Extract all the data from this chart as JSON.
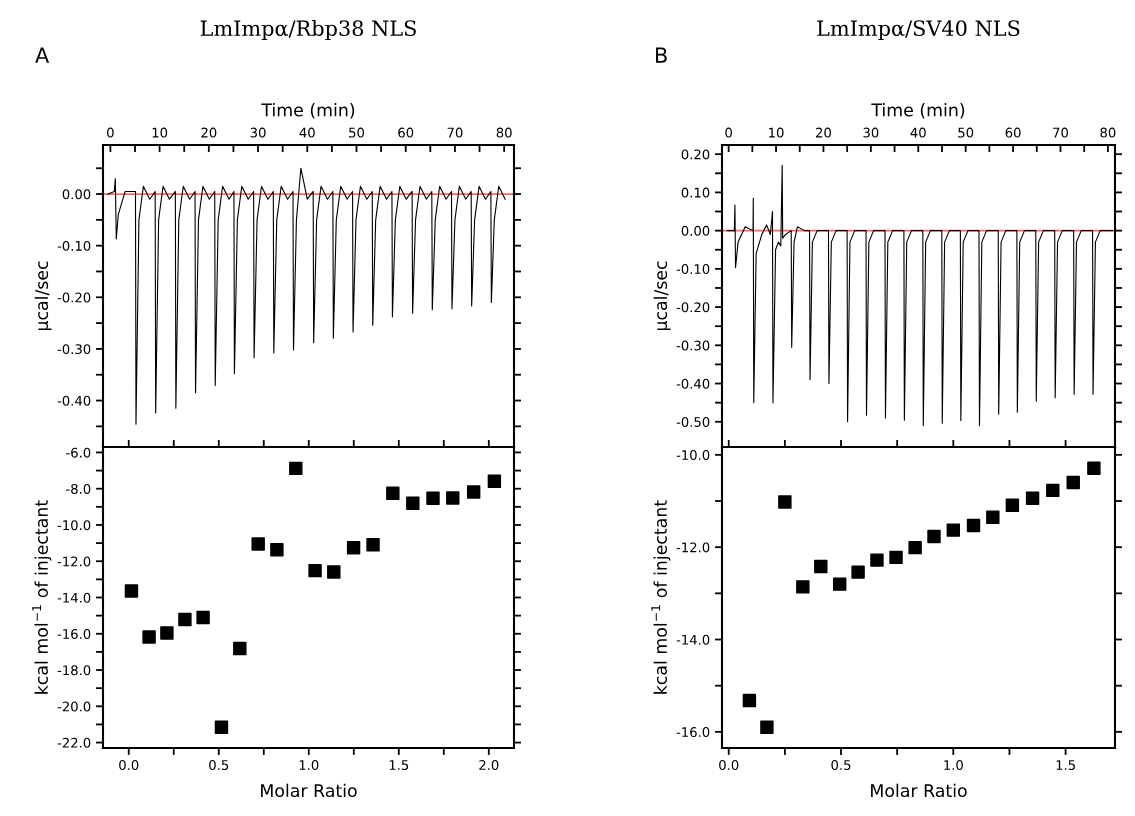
{
  "chart_data": [
    {
      "type": "line",
      "title": "LmImpα/Rbp38 NLS",
      "annotations": [
        "A"
      ],
      "xlabel": "Time (min)",
      "ylabel": "µcal/sec",
      "xlim": [
        -1.5,
        82
      ],
      "ylim": [
        -0.49,
        0.095
      ],
      "xticks": [
        0,
        {
          "value": 5,
          "label": null
        },
        10,
        {
          "value": 15,
          "label": null
        },
        20,
        {
          "value": 25,
          "label": null
        },
        30,
        {
          "value": 35,
          "label": null
        },
        40,
        {
          "value": 45,
          "label": null
        },
        50,
        {
          "value": 55,
          "label": null
        },
        60,
        {
          "value": 65,
          "label": null
        },
        70,
        {
          "value": 75,
          "label": null
        },
        80
      ],
      "yticks": [
        {
          "value": 0.05,
          "label": null
        },
        {
          "value": 0,
          "label": "0.00"
        },
        {
          "value": -0.05,
          "label": null
        },
        {
          "value": -0.1,
          "label": "-0.10"
        },
        {
          "value": -0.15,
          "label": null
        },
        {
          "value": -0.2,
          "label": "-0.20"
        },
        {
          "value": -0.25,
          "label": null
        },
        {
          "value": -0.3,
          "label": "-0.30"
        },
        {
          "value": -0.35,
          "label": null
        },
        {
          "value": -0.4,
          "label": "-0.40"
        },
        {
          "value": -0.45,
          "label": null
        }
      ],
      "ref_lines": [
        {
          "axis": "y",
          "value": 0,
          "color": "#ff6666"
        }
      ],
      "grid": false,
      "legend": false,
      "series": [
        {
          "color": "#000000",
          "x": [
            -0.5,
            0.8,
            1.0,
            1.2,
            1.6,
            3.0,
            5.1,
            5.2,
            5.8,
            6.7,
            8.0,
            9.1,
            9.2,
            9.8,
            10.7,
            12.0,
            13.2,
            13.3,
            13.9,
            14.8,
            16.1,
            17.2,
            17.3,
            17.9,
            18.8,
            20.1,
            21.2,
            21.3,
            21.9,
            22.8,
            24.1,
            25.1,
            25.2,
            25.8,
            26.7,
            28.0,
            29.1,
            29.2,
            29.8,
            30.7,
            32.0,
            33.1,
            33.2,
            33.8,
            34.7,
            36.0,
            37.1,
            37.2,
            37.8,
            38.7,
            40.0,
            41.2,
            41.3,
            41.9,
            42.8,
            44.1,
            45.2,
            45.3,
            45.9,
            46.8,
            48.1,
            49.2,
            49.3,
            49.9,
            50.8,
            52.1,
            53.2,
            53.3,
            53.9,
            54.8,
            56.1,
            57.2,
            57.3,
            57.9,
            58.8,
            60.1,
            61.3,
            61.4,
            62.0,
            62.9,
            64.2,
            65.3,
            65.4,
            66.0,
            66.9,
            68.2,
            69.3,
            69.4,
            70.0,
            70.9,
            72.2,
            73.3,
            73.4,
            74.0,
            74.9,
            76.2,
            77.3,
            77.4,
            78.0,
            78.9,
            80.2
          ],
          "values": [
            0,
            0.005,
            0.03,
            -0.087,
            -0.04,
            0.005,
            0.005,
            -0.446,
            -0.05,
            0.015,
            -0.01,
            0.005,
            -0.424,
            -0.05,
            0.015,
            -0.01,
            0.005,
            -0.415,
            -0.05,
            0.015,
            -0.01,
            0.005,
            -0.385,
            -0.05,
            0.015,
            -0.01,
            0.005,
            -0.371,
            -0.05,
            0.015,
            -0.01,
            0.005,
            -0.348,
            -0.05,
            0.015,
            -0.01,
            0.005,
            -0.317,
            -0.05,
            0.015,
            -0.01,
            0.005,
            -0.308,
            -0.05,
            0.015,
            -0.01,
            0.005,
            -0.302,
            -0.05,
            0.05,
            -0.01,
            0.005,
            -0.288,
            -0.05,
            0.015,
            -0.01,
            0.005,
            -0.279,
            -0.05,
            0.015,
            -0.01,
            0.005,
            -0.267,
            -0.05,
            0.015,
            -0.01,
            0.005,
            -0.254,
            -0.05,
            0.015,
            -0.01,
            0.005,
            -0.238,
            -0.05,
            0.015,
            -0.01,
            0.005,
            -0.231,
            -0.05,
            0.015,
            -0.01,
            0.005,
            -0.224,
            -0.05,
            0.015,
            -0.01,
            0.005,
            -0.222,
            -0.05,
            0.015,
            -0.01,
            0.005,
            -0.217,
            -0.05,
            0.015,
            -0.01,
            0.005,
            -0.21,
            -0.05,
            0.015,
            -0.01
          ]
        }
      ]
    },
    {
      "type": "scatter",
      "marker": "square",
      "xlabel": "Molar Ratio",
      "ylabel": "kcal mol$^{−1}$ of injectant",
      "xlim": [
        -0.143,
        2.14
      ],
      "ylim": [
        -22.3,
        -5.7
      ],
      "xticks": [
        {
          "value": 0,
          "label": "0.0"
        },
        {
          "value": 0.25,
          "label": null
        },
        {
          "value": 0.5,
          "label": "0.5"
        },
        {
          "value": 0.75,
          "label": null
        },
        {
          "value": 1,
          "label": "1.0"
        },
        {
          "value": 1.25,
          "label": null
        },
        {
          "value": 1.5,
          "label": "1.5"
        },
        {
          "value": 1.75,
          "label": null
        },
        {
          "value": 2,
          "label": "2.0"
        }
      ],
      "yticks": [
        {
          "value": -6,
          "label": "-6.0"
        },
        {
          "value": -7,
          "label": null
        },
        {
          "value": -8,
          "label": "-8.0"
        },
        {
          "value": -9,
          "label": null
        },
        {
          "value": -10,
          "label": "-10.0"
        },
        {
          "value": -11,
          "label": null
        },
        {
          "value": -12,
          "label": "-12.0"
        },
        {
          "value": -13,
          "label": null
        },
        {
          "value": -14,
          "label": "-14.0"
        },
        {
          "value": -15,
          "label": null
        },
        {
          "value": -16,
          "label": "-16.0"
        },
        {
          "value": -17,
          "label": null
        },
        {
          "value": -18,
          "label": "-18.0"
        },
        {
          "value": -19,
          "label": null
        },
        {
          "value": -20,
          "label": "-20.0"
        },
        {
          "value": -21,
          "label": null
        },
        {
          "value": -22,
          "label": "-22.0"
        }
      ],
      "grid": false,
      "legend": false,
      "series": [
        {
          "color": "#000000",
          "x": [
            0.015,
            0.113,
            0.212,
            0.312,
            0.413,
            0.515,
            0.617,
            0.719,
            0.823,
            0.928,
            1.035,
            1.139,
            1.249,
            1.357,
            1.467,
            1.578,
            1.69,
            1.8,
            1.916,
            2.031
          ],
          "values": [
            -13.64,
            -16.18,
            -15.96,
            -15.21,
            -15.1,
            -21.16,
            -16.81,
            -11.05,
            -11.37,
            -6.88,
            -12.52,
            -12.59,
            -11.26,
            -11.09,
            -8.25,
            -8.8,
            -8.53,
            -8.51,
            -8.18,
            -7.59
          ]
        }
      ]
    },
    {
      "type": "line",
      "title": "LmImpα/SV40 NLS",
      "annotations": [
        "B"
      ],
      "xlabel": "Time (min)",
      "ylabel": "µcal/sec",
      "xlim": [
        -1.4,
        81.5
      ],
      "ylim": [
        -0.566,
        0.224
      ],
      "xticks": [
        0,
        {
          "value": 5,
          "label": null
        },
        10,
        {
          "value": 15,
          "label": null
        },
        20,
        {
          "value": 25,
          "label": null
        },
        30,
        {
          "value": 35,
          "label": null
        },
        40,
        {
          "value": 45,
          "label": null
        },
        50,
        {
          "value": 55,
          "label": null
        },
        60,
        {
          "value": 65,
          "label": null
        },
        70,
        {
          "value": 75,
          "label": null
        },
        80
      ],
      "yticks": [
        {
          "value": 0.2,
          "label": "0.20"
        },
        {
          "value": 0.15,
          "label": null
        },
        {
          "value": 0.1,
          "label": "0.10"
        },
        {
          "value": 0.05,
          "label": null
        },
        {
          "value": 0,
          "label": "0.00"
        },
        {
          "value": -0.05,
          "label": null
        },
        {
          "value": -0.1,
          "label": "-0.10"
        },
        {
          "value": -0.15,
          "label": null
        },
        {
          "value": -0.2,
          "label": "-0.20"
        },
        {
          "value": -0.25,
          "label": null
        },
        {
          "value": -0.3,
          "label": "-0.30"
        },
        {
          "value": -0.35,
          "label": null
        },
        {
          "value": -0.4,
          "label": "-0.40"
        },
        {
          "value": -0.45,
          "label": null
        },
        {
          "value": -0.5,
          "label": "-0.50"
        }
      ],
      "ref_lines": [
        {
          "axis": "y",
          "value": 0,
          "color": "#ff6666"
        }
      ],
      "grid": false,
      "legend": false,
      "series": [
        {
          "color": "#000000",
          "x": [
            -0.3,
            1.2,
            1.33,
            1.45,
            2.0,
            3.5,
            5.15,
            5.2,
            5.3,
            5.8,
            7.0,
            8.0,
            8.8,
            9.25,
            9.35,
            9.9,
            10.5,
            11.0,
            11.3,
            11.4,
            12.0,
            13.2,
            13.3,
            13.8,
            14.5,
            16.0,
            17.07,
            17.17,
            17.67,
            18.67,
            21.06,
            21.16,
            21.66,
            22.66,
            24.99,
            25.09,
            25.59,
            26.59,
            28.98,
            29.08,
            29.58,
            30.58,
            32.98,
            33.08,
            33.58,
            34.58,
            36.97,
            37.07,
            37.57,
            38.57,
            40.96,
            41.06,
            41.56,
            42.56,
            44.96,
            45.06,
            45.56,
            46.56,
            48.88,
            48.98,
            49.48,
            50.48,
            52.81,
            52.91,
            53.41,
            54.41,
            56.87,
            56.97,
            57.47,
            58.47,
            60.8,
            60.9,
            61.4,
            62.4,
            64.79,
            64.89,
            65.39,
            66.39,
            68.78,
            68.88,
            69.38,
            70.38,
            72.78,
            72.88,
            73.38,
            74.38,
            76.77,
            76.87,
            77.37,
            78.37,
            81.0
          ],
          "values": [
            0,
            0,
            0.067,
            -0.097,
            -0.03,
            0.01,
            0,
            0.085,
            -0.45,
            -0.06,
            -0.01,
            0.015,
            -0.01,
            0.05,
            -0.45,
            -0.05,
            -0.03,
            -0.04,
            0.171,
            -0.02,
            -0.01,
            0,
            -0.305,
            -0.03,
            0.01,
            0,
            0,
            -0.39,
            -0.03,
            0,
            0,
            -0.4,
            -0.03,
            0,
            0,
            -0.5,
            -0.03,
            0,
            0,
            -0.483,
            -0.03,
            0,
            0,
            -0.49,
            -0.03,
            0,
            0,
            -0.496,
            -0.03,
            0,
            0,
            -0.51,
            -0.03,
            0,
            0,
            -0.504,
            -0.03,
            0,
            0,
            -0.497,
            -0.03,
            0,
            0,
            -0.51,
            -0.03,
            0,
            0,
            -0.48,
            -0.03,
            0,
            0,
            -0.475,
            -0.03,
            0,
            0,
            -0.446,
            -0.03,
            0,
            0,
            -0.437,
            -0.03,
            0,
            0,
            -0.428,
            -0.03,
            0,
            0,
            -0.428,
            -0.03,
            0,
            0
          ]
        }
      ]
    },
    {
      "type": "scatter",
      "marker": "square",
      "xlabel": "Molar Ratio",
      "ylabel": "kcal mol$^{−1}$ of injectant",
      "xlim": [
        -0.03,
        1.72
      ],
      "ylim": [
        -16.35,
        -9.83
      ],
      "xticks": [
        {
          "value": 0,
          "label": "0.0"
        },
        {
          "value": 0.25,
          "label": null
        },
        {
          "value": 0.5,
          "label": "0.5"
        },
        {
          "value": 0.75,
          "label": null
        },
        {
          "value": 1,
          "label": "1.0"
        },
        {
          "value": 1.25,
          "label": null
        },
        {
          "value": 1.5,
          "label": "1.5"
        }
      ],
      "yticks": [
        {
          "value": -10,
          "label": "-10.0"
        },
        {
          "value": -11,
          "label": null
        },
        {
          "value": -12,
          "label": "-12.0"
        },
        {
          "value": -13,
          "label": null
        },
        {
          "value": -14,
          "label": "-14.0"
        },
        {
          "value": -15,
          "label": null
        },
        {
          "value": -16,
          "label": "-16.0"
        }
      ],
      "grid": false,
      "legend": false,
      "series": [
        {
          "color": "#000000",
          "x": [
            0.092,
            0.17,
            0.25,
            0.33,
            0.41,
            0.494,
            0.576,
            0.66,
            0.745,
            0.83,
            0.914,
            1.0,
            1.09,
            1.176,
            1.263,
            1.353,
            1.443,
            1.534,
            1.626
          ],
          "values": [
            -15.32,
            -15.9,
            -11.02,
            -12.86,
            -12.42,
            -12.8,
            -12.54,
            -12.28,
            -12.22,
            -12.01,
            -11.77,
            -11.63,
            -11.53,
            -11.35,
            -11.09,
            -10.94,
            -10.77,
            -10.6,
            -10.29
          ]
        }
      ]
    }
  ]
}
